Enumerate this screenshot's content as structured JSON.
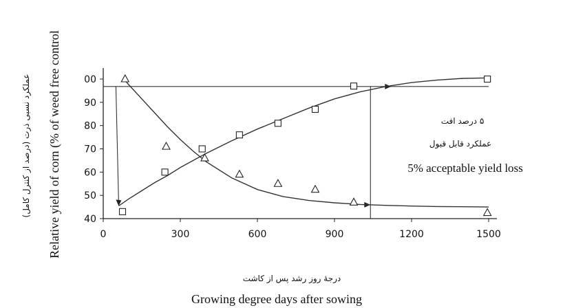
{
  "chart_data": {
    "type": "scatter",
    "xlabel": "Growing degree days after sowing",
    "xlabel_fa": "درجهٔ روز رشد پس از کاشت",
    "ylabel": "Relative yield of  corn  (% of weed free control",
    "ylabel_fa": "عملکرد نسبی ذرت  (درصد از کنترل کامل)",
    "xlim": [
      0,
      1500
    ],
    "ylim": [
      40,
      100
    ],
    "x_ticks": [
      "0",
      "300",
      "600",
      "900",
      "1200",
      "1500"
    ],
    "y_ticks": [
      "40",
      "50",
      "60",
      "70",
      "80",
      "90",
      "00"
    ],
    "series": [
      {
        "marker": "square",
        "points": [
          {
            "x": 75,
            "y": 43
          },
          {
            "x": 240,
            "y": 60
          },
          {
            "x": 385,
            "y": 70
          },
          {
            "x": 530,
            "y": 76
          },
          {
            "x": 680,
            "y": 81
          },
          {
            "x": 825,
            "y": 87
          },
          {
            "x": 975,
            "y": 97
          },
          {
            "x": 1495,
            "y": 100
          }
        ]
      },
      {
        "marker": "triangle",
        "points": [
          {
            "x": 85,
            "y": 100
          },
          {
            "x": 245,
            "y": 71
          },
          {
            "x": 395,
            "y": 66
          },
          {
            "x": 530,
            "y": 59
          },
          {
            "x": 680,
            "y": 55
          },
          {
            "x": 825,
            "y": 52.5
          },
          {
            "x": 975,
            "y": 47
          },
          {
            "x": 1495,
            "y": 42.5
          }
        ]
      }
    ],
    "fitted_curves": [
      {
        "shape": "rising",
        "points": [
          [
            60,
            45.5
          ],
          [
            100,
            48.5
          ],
          [
            150,
            52
          ],
          [
            200,
            55.5
          ],
          [
            250,
            58.5
          ],
          [
            300,
            62
          ],
          [
            350,
            65
          ],
          [
            400,
            68
          ],
          [
            500,
            73.5
          ],
          [
            600,
            78.5
          ],
          [
            700,
            83
          ],
          [
            800,
            87.5
          ],
          [
            900,
            91.5
          ],
          [
            1000,
            94.5
          ],
          [
            1100,
            96.8
          ],
          [
            1200,
            98.5
          ],
          [
            1300,
            99.6
          ],
          [
            1400,
            100.3
          ],
          [
            1500,
            100.5
          ]
        ]
      },
      {
        "shape": "falling",
        "points": [
          [
            80,
            100
          ],
          [
            100,
            97.5
          ],
          [
            150,
            91.5
          ],
          [
            200,
            85.5
          ],
          [
            250,
            79.5
          ],
          [
            300,
            74
          ],
          [
            350,
            69
          ],
          [
            400,
            64.5
          ],
          [
            500,
            57.5
          ],
          [
            600,
            52.5
          ],
          [
            700,
            49.5
          ],
          [
            800,
            47.8
          ],
          [
            900,
            46.8
          ],
          [
            1000,
            46.1
          ],
          [
            1100,
            45.7
          ],
          [
            1200,
            45.4
          ],
          [
            1300,
            45.2
          ],
          [
            1400,
            45.1
          ],
          [
            1500,
            45
          ]
        ]
      }
    ],
    "reference_lines": {
      "horizontal_y": 96.8,
      "start_x": 60,
      "vertical_x": 1040
    },
    "annotations": {
      "fa_line1": "۵ درصد افت",
      "fa_line2": "عملکرد قابل قبول",
      "en": "5%  acceptable yield loss"
    }
  }
}
